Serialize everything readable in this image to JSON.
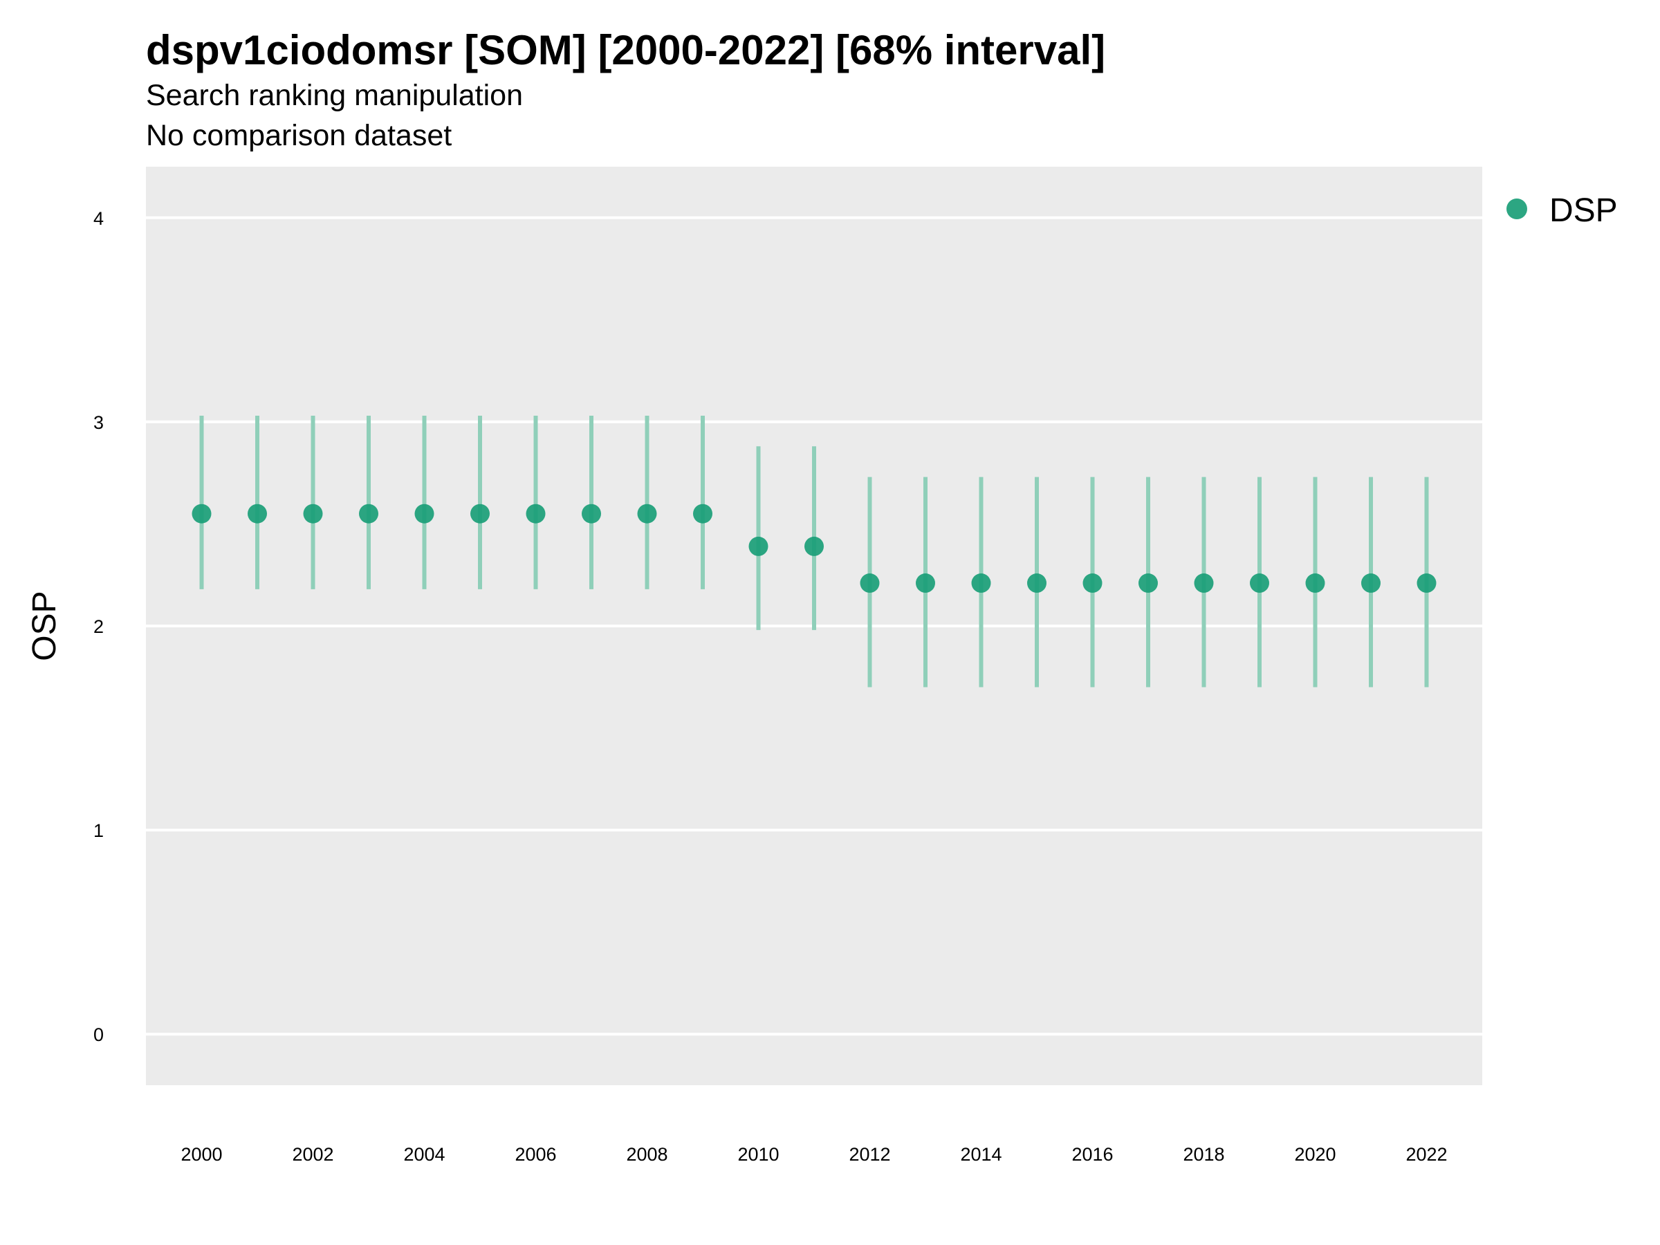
{
  "chart_data": {
    "type": "scatter",
    "title": "dspv1ciodomsr [SOM] [2000-2022] [68% interval]",
    "subtitle_lines": [
      "Search ranking manipulation",
      "No comparison dataset"
    ],
    "xlabel": "",
    "ylabel": "OSP",
    "xlim": [
      1999,
      2023
    ],
    "ylim": [
      -0.25,
      4.25
    ],
    "x_ticks": [
      2000,
      2002,
      2004,
      2006,
      2008,
      2010,
      2012,
      2014,
      2016,
      2018,
      2020,
      2022
    ],
    "y_ticks": [
      0,
      1,
      2,
      3,
      4
    ],
    "grid": true,
    "legend_position": "top-right",
    "colors": {
      "point": "#1a9e77",
      "interval": "#8fcfb9",
      "panel": "#ebebeb",
      "gridline": "#ffffff"
    },
    "series": [
      {
        "name": "DSP",
        "x": [
          2000,
          2001,
          2002,
          2003,
          2004,
          2005,
          2006,
          2007,
          2008,
          2009,
          2010,
          2011,
          2012,
          2013,
          2014,
          2015,
          2016,
          2017,
          2018,
          2019,
          2020,
          2021,
          2022
        ],
        "y": [
          2.55,
          2.55,
          2.55,
          2.55,
          2.55,
          2.55,
          2.55,
          2.55,
          2.55,
          2.55,
          2.39,
          2.39,
          2.21,
          2.21,
          2.21,
          2.21,
          2.21,
          2.21,
          2.21,
          2.21,
          2.21,
          2.21,
          2.21
        ],
        "lower": [
          2.18,
          2.18,
          2.18,
          2.18,
          2.18,
          2.18,
          2.18,
          2.18,
          2.18,
          2.18,
          1.98,
          1.98,
          1.7,
          1.7,
          1.7,
          1.7,
          1.7,
          1.7,
          1.7,
          1.7,
          1.7,
          1.7,
          1.7
        ],
        "upper": [
          3.03,
          3.03,
          3.03,
          3.03,
          3.03,
          3.03,
          3.03,
          3.03,
          3.03,
          3.03,
          2.88,
          2.88,
          2.73,
          2.73,
          2.73,
          2.73,
          2.73,
          2.73,
          2.73,
          2.73,
          2.73,
          2.73,
          2.73
        ]
      }
    ]
  }
}
